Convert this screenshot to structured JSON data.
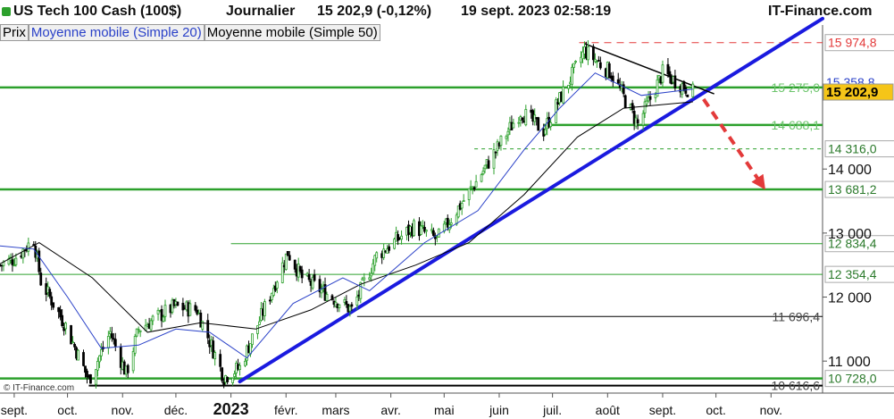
{
  "header": {
    "instrument": "US Tech 100 Cash (100$)",
    "period": "Journalier",
    "quote": "15 202,9 (-0,12%)",
    "datetime": "19 sept. 2023 02:58:19",
    "brand": "IT-Finance.com"
  },
  "legend": {
    "prix": "Prix",
    "ma20": "Moyenne mobile (Simple 20)",
    "ma50": "Moyenne mobile (Simple 50)"
  },
  "copyright": "© IT-Finance.com",
  "colors": {
    "candle_up": "#2ca02c",
    "candle_down": "#000000",
    "ma20": "#2a41c8",
    "ma50": "#000000",
    "support": "#2ca02c",
    "trend": "#1a1adf",
    "resistance": "#e33a3a",
    "last_price_bg": "#f5c518"
  },
  "chart_data": {
    "type": "candlestick",
    "y_axis": {
      "ylim": [
        10500,
        16250
      ],
      "ticks": [
        {
          "value": 11000,
          "label": "11 000"
        },
        {
          "value": 12000,
          "label": "12 000"
        },
        {
          "value": 13000,
          "label": "13 000"
        },
        {
          "value": 14000,
          "label": "14 000"
        }
      ]
    },
    "x_axis": {
      "start": "2022-08-24",
      "end": "2023-11-30",
      "labels": [
        {
          "date": "2022-09-01",
          "label": "sept.",
          "bold": false
        },
        {
          "date": "2022-10-01",
          "label": "oct.",
          "bold": false
        },
        {
          "date": "2022-11-01",
          "label": "nov.",
          "bold": false
        },
        {
          "date": "2022-12-01",
          "label": "déc.",
          "bold": false
        },
        {
          "date": "2023-01-01",
          "label": "2023",
          "bold": true
        },
        {
          "date": "2023-02-01",
          "label": "févr.",
          "bold": false
        },
        {
          "date": "2023-03-01",
          "label": "mars",
          "bold": false
        },
        {
          "date": "2023-04-01",
          "label": "avr.",
          "bold": false
        },
        {
          "date": "2023-05-01",
          "label": "mai",
          "bold": false
        },
        {
          "date": "2023-06-01",
          "label": "juin",
          "bold": false
        },
        {
          "date": "2023-07-01",
          "label": "juil.",
          "bold": false
        },
        {
          "date": "2023-08-01",
          "label": "août",
          "bold": false
        },
        {
          "date": "2023-09-01",
          "label": "sept.",
          "bold": false
        },
        {
          "date": "2023-10-01",
          "label": "oct.",
          "bold": false
        },
        {
          "date": "2023-11-01",
          "label": "nov.",
          "bold": false
        }
      ]
    },
    "close_path": [
      [
        "2022-08-24",
        12500
      ],
      [
        "2022-09-01",
        12600
      ],
      [
        "2022-09-12",
        12900
      ],
      [
        "2022-09-16",
        12250
      ],
      [
        "2022-09-30",
        11550
      ],
      [
        "2022-10-13",
        10700
      ],
      [
        "2022-10-25",
        11450
      ],
      [
        "2022-11-03",
        10800
      ],
      [
        "2022-11-10",
        11500
      ],
      [
        "2022-11-30",
        11850
      ],
      [
        "2022-12-13",
        11800
      ],
      [
        "2022-12-28",
        10750
      ],
      [
        "2023-01-06",
        10900
      ],
      [
        "2023-02-02",
        12700
      ],
      [
        "2023-02-10",
        12300
      ],
      [
        "2023-03-10",
        11800
      ],
      [
        "2023-03-24",
        12650
      ],
      [
        "2023-04-14",
        13100
      ],
      [
        "2023-04-27",
        12900
      ],
      [
        "2023-05-19",
        13800
      ],
      [
        "2023-06-13",
        14900
      ],
      [
        "2023-06-26",
        14600
      ],
      [
        "2023-07-19",
        15850
      ],
      [
        "2023-08-03",
        15500
      ],
      [
        "2023-08-18",
        14700
      ],
      [
        "2023-09-01",
        15500
      ],
      [
        "2023-09-18",
        15203
      ]
    ],
    "ma20_path": [
      [
        "2022-08-24",
        12800
      ],
      [
        "2022-09-12",
        12750
      ],
      [
        "2022-10-01",
        12000
      ],
      [
        "2022-10-20",
        11200
      ],
      [
        "2022-11-10",
        11250
      ],
      [
        "2022-12-01",
        11500
      ],
      [
        "2022-12-20",
        11450
      ],
      [
        "2023-01-10",
        11050
      ],
      [
        "2023-02-05",
        11900
      ],
      [
        "2023-03-05",
        12300
      ],
      [
        "2023-03-20",
        12100
      ],
      [
        "2023-04-20",
        12850
      ],
      [
        "2023-05-20",
        13350
      ],
      [
        "2023-06-15",
        14300
      ],
      [
        "2023-07-05",
        14950
      ],
      [
        "2023-07-25",
        15500
      ],
      [
        "2023-08-20",
        15150
      ],
      [
        "2023-09-18",
        15250
      ]
    ],
    "ma50_path": [
      [
        "2022-08-24",
        12520
      ],
      [
        "2022-09-15",
        12850
      ],
      [
        "2022-10-15",
        12300
      ],
      [
        "2022-11-15",
        11450
      ],
      [
        "2022-12-15",
        11600
      ],
      [
        "2023-01-15",
        11500
      ],
      [
        "2023-02-15",
        11800
      ],
      [
        "2023-03-15",
        12200
      ],
      [
        "2023-04-15",
        12500
      ],
      [
        "2023-05-15",
        12850
      ],
      [
        "2023-06-15",
        13600
      ],
      [
        "2023-07-15",
        14500
      ],
      [
        "2023-08-10",
        14950
      ],
      [
        "2023-09-18",
        15050
      ]
    ],
    "levels": [
      {
        "value": 15974.8,
        "label": "15 974,8",
        "style": "resistance",
        "from": "2023-07-16",
        "boxed": true
      },
      {
        "value": 15358.8,
        "label": "15 358,8",
        "style": "ma-tag",
        "from": "2023-09-18",
        "boxed": false
      },
      {
        "value": 15275.0,
        "label": "15 275,0",
        "style": "support-thick",
        "from": "2022-08-24",
        "boxed": false
      },
      {
        "value": 15202.9,
        "label": "15 202,9",
        "style": "last",
        "from": "2023-09-18",
        "boxed": true
      },
      {
        "value": 14688.1,
        "label": "14 688,1",
        "style": "support-thick",
        "from": "2023-06-26",
        "boxed": false
      },
      {
        "value": 14316.0,
        "label": "14 316,0",
        "style": "support-dashed",
        "from": "2023-05-18",
        "boxed": true
      },
      {
        "value": 13681.2,
        "label": "13 681,2",
        "style": "support-thick",
        "from": "2022-08-24",
        "boxed": true
      },
      {
        "value": 12834.4,
        "label": "12 834,4",
        "style": "support-thin",
        "from": "2023-01-01",
        "boxed": true
      },
      {
        "value": 12354.4,
        "label": "12 354,4",
        "style": "support-thin",
        "from": "2022-08-24",
        "boxed": true
      },
      {
        "value": 11696.4,
        "label": "11 696,4",
        "style": "black-thin",
        "from": "2023-03-13",
        "boxed": false
      },
      {
        "value": 10728.0,
        "label": "10 728,0",
        "style": "support-thick",
        "from": "2022-08-24",
        "boxed": true
      },
      {
        "value": 10616.6,
        "label": "10 616,6",
        "style": "black-thick",
        "from": "2022-10-13",
        "boxed": false
      }
    ],
    "trendlines": [
      {
        "name": "uptrend",
        "from": [
          "2023-01-06",
          10680
        ],
        "to": [
          "2023-11-30",
          16350
        ]
      },
      {
        "name": "downtrend",
        "from": [
          "2023-07-19",
          15960
        ],
        "to": [
          "2023-09-30",
          15175
        ]
      }
    ],
    "projection_arrow": {
      "from": [
        "2023-09-18",
        15203
      ],
      "to": [
        "2023-10-27",
        13750
      ]
    }
  }
}
